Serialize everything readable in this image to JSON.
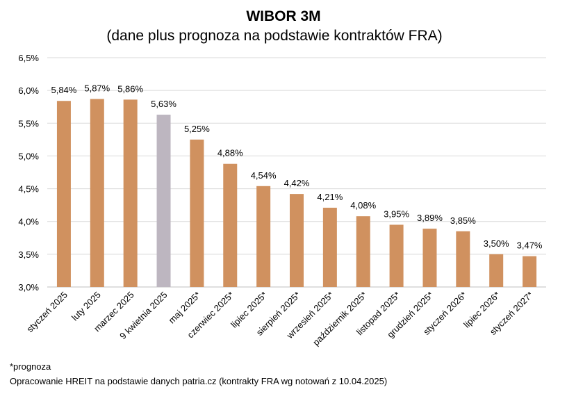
{
  "chart_data": {
    "type": "bar",
    "title": "WIBOR 3M",
    "subtitle": "(dane plus prognoza na podstawie kontraktów FRA)",
    "categories": [
      "styczeń 2025",
      "luty 2025",
      "marzec 2025",
      "9 kwietnia 2025",
      "maj 2025*",
      "czerwiec 2025*",
      "lipiec 2025*",
      "sierpień 2025*",
      "wrzesień 2025*",
      "październik 2025*",
      "listopad 2025*",
      "grudzień 2025*",
      "styczeń 2026*",
      "lipiec 2026*",
      "styczeń 2027*"
    ],
    "values": [
      5.84,
      5.87,
      5.86,
      5.63,
      5.25,
      4.88,
      4.54,
      4.42,
      4.21,
      4.08,
      3.95,
      3.89,
      3.85,
      3.5,
      3.47
    ],
    "data_labels": [
      "5,84%",
      "5,87%",
      "5,86%",
      "5,63%",
      "5,25%",
      "4,88%",
      "4,54%",
      "4,42%",
      "4,21%",
      "4,08%",
      "3,95%",
      "3,89%",
      "3,85%",
      "3,50%",
      "3,47%"
    ],
    "bar_colors": [
      "#d0915f",
      "#d0915f",
      "#d0915f",
      "#bdb6c0",
      "#d0915f",
      "#d0915f",
      "#d0915f",
      "#d0915f",
      "#d0915f",
      "#d0915f",
      "#d0915f",
      "#d0915f",
      "#d0915f",
      "#d0915f",
      "#d0915f"
    ],
    "ylim": [
      3.0,
      6.5
    ],
    "yticks": [
      3.0,
      3.5,
      4.0,
      4.5,
      5.0,
      5.5,
      6.0,
      6.5
    ],
    "ytick_labels": [
      "3,0%",
      "3,5%",
      "4,0%",
      "4,5%",
      "5,0%",
      "5,5%",
      "6,0%",
      "6,5%"
    ],
    "grid": true,
    "gridline_color": "#d9d9d9",
    "xlabel": "",
    "ylabel": ""
  },
  "footer": {
    "note": "*prognoza",
    "source": "Opracowanie HREIT na podstawie danych patria.cz (kontrakty FRA wg notowań z 10.04.2025)"
  }
}
